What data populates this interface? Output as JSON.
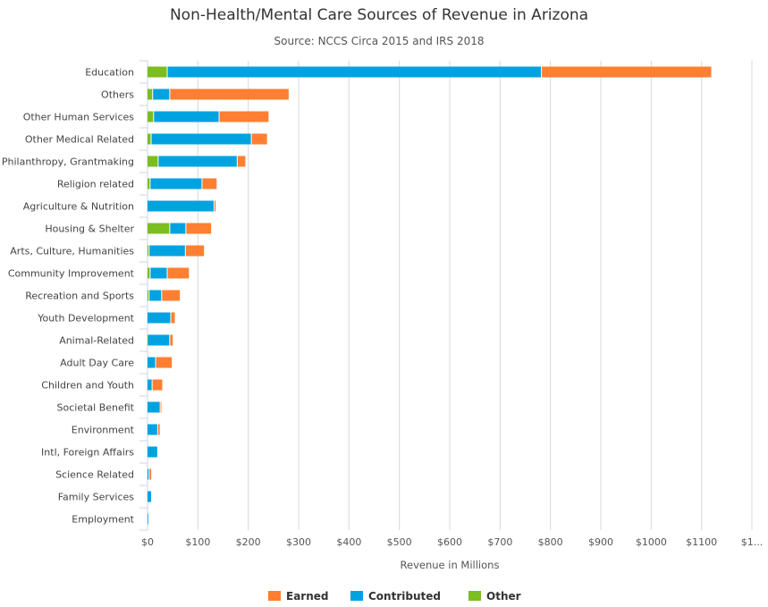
{
  "chart_data": {
    "type": "bar",
    "orientation": "horizontal",
    "stacked": true,
    "title": "Non-Health/Mental Care Sources of Revenue in Arizona",
    "subtitle": "Source: NCCS Circa 2015 and IRS 2018",
    "xlabel": "Revenue in Millions",
    "xlim": [
      0,
      1200
    ],
    "x_ticks": [
      "$0",
      "$100",
      "$200",
      "$300",
      "$400",
      "$500",
      "$600",
      "$700",
      "$800",
      "$900",
      "$1000",
      "$1100",
      "$1..."
    ],
    "grid": true,
    "legend_position": "bottom",
    "categories": [
      "Education",
      "Others",
      "Other Human Services",
      "Other Medical Related",
      "Philanthropy, Grantmaking",
      "Religion related",
      "Agriculture & Nutrition",
      "Housing & Shelter",
      "Arts, Culture, Humanities",
      "Community Improvement",
      "Recreation and Sports",
      "Youth Development",
      "Animal-Related",
      "Adult Day Care",
      "Children and Youth",
      "Societal Benefit",
      "Environment",
      "Intl, Foreign Affairs",
      "Science Related",
      "Family Services",
      "Employment"
    ],
    "series": [
      {
        "name": "Earned",
        "color": "#fe7f32",
        "values": [
          338,
          237,
          99,
          32,
          17,
          30,
          4,
          51,
          38,
          44,
          37,
          9,
          7,
          33,
          21,
          3,
          5,
          0,
          5,
          0,
          0
        ]
      },
      {
        "name": "Contributed",
        "color": "#00a3e0",
        "values": [
          743,
          34,
          130,
          199,
          157,
          103,
          133,
          32,
          72,
          34,
          25,
          47,
          44,
          17,
          10,
          26,
          21,
          21,
          4,
          9,
          1
        ]
      },
      {
        "name": "Other",
        "color": "#7cbd20",
        "values": [
          40,
          11,
          13,
          8,
          22,
          6,
          0,
          45,
          4,
          6,
          4,
          0,
          1,
          0,
          0,
          0,
          0,
          0,
          0,
          0,
          0
        ]
      }
    ]
  }
}
